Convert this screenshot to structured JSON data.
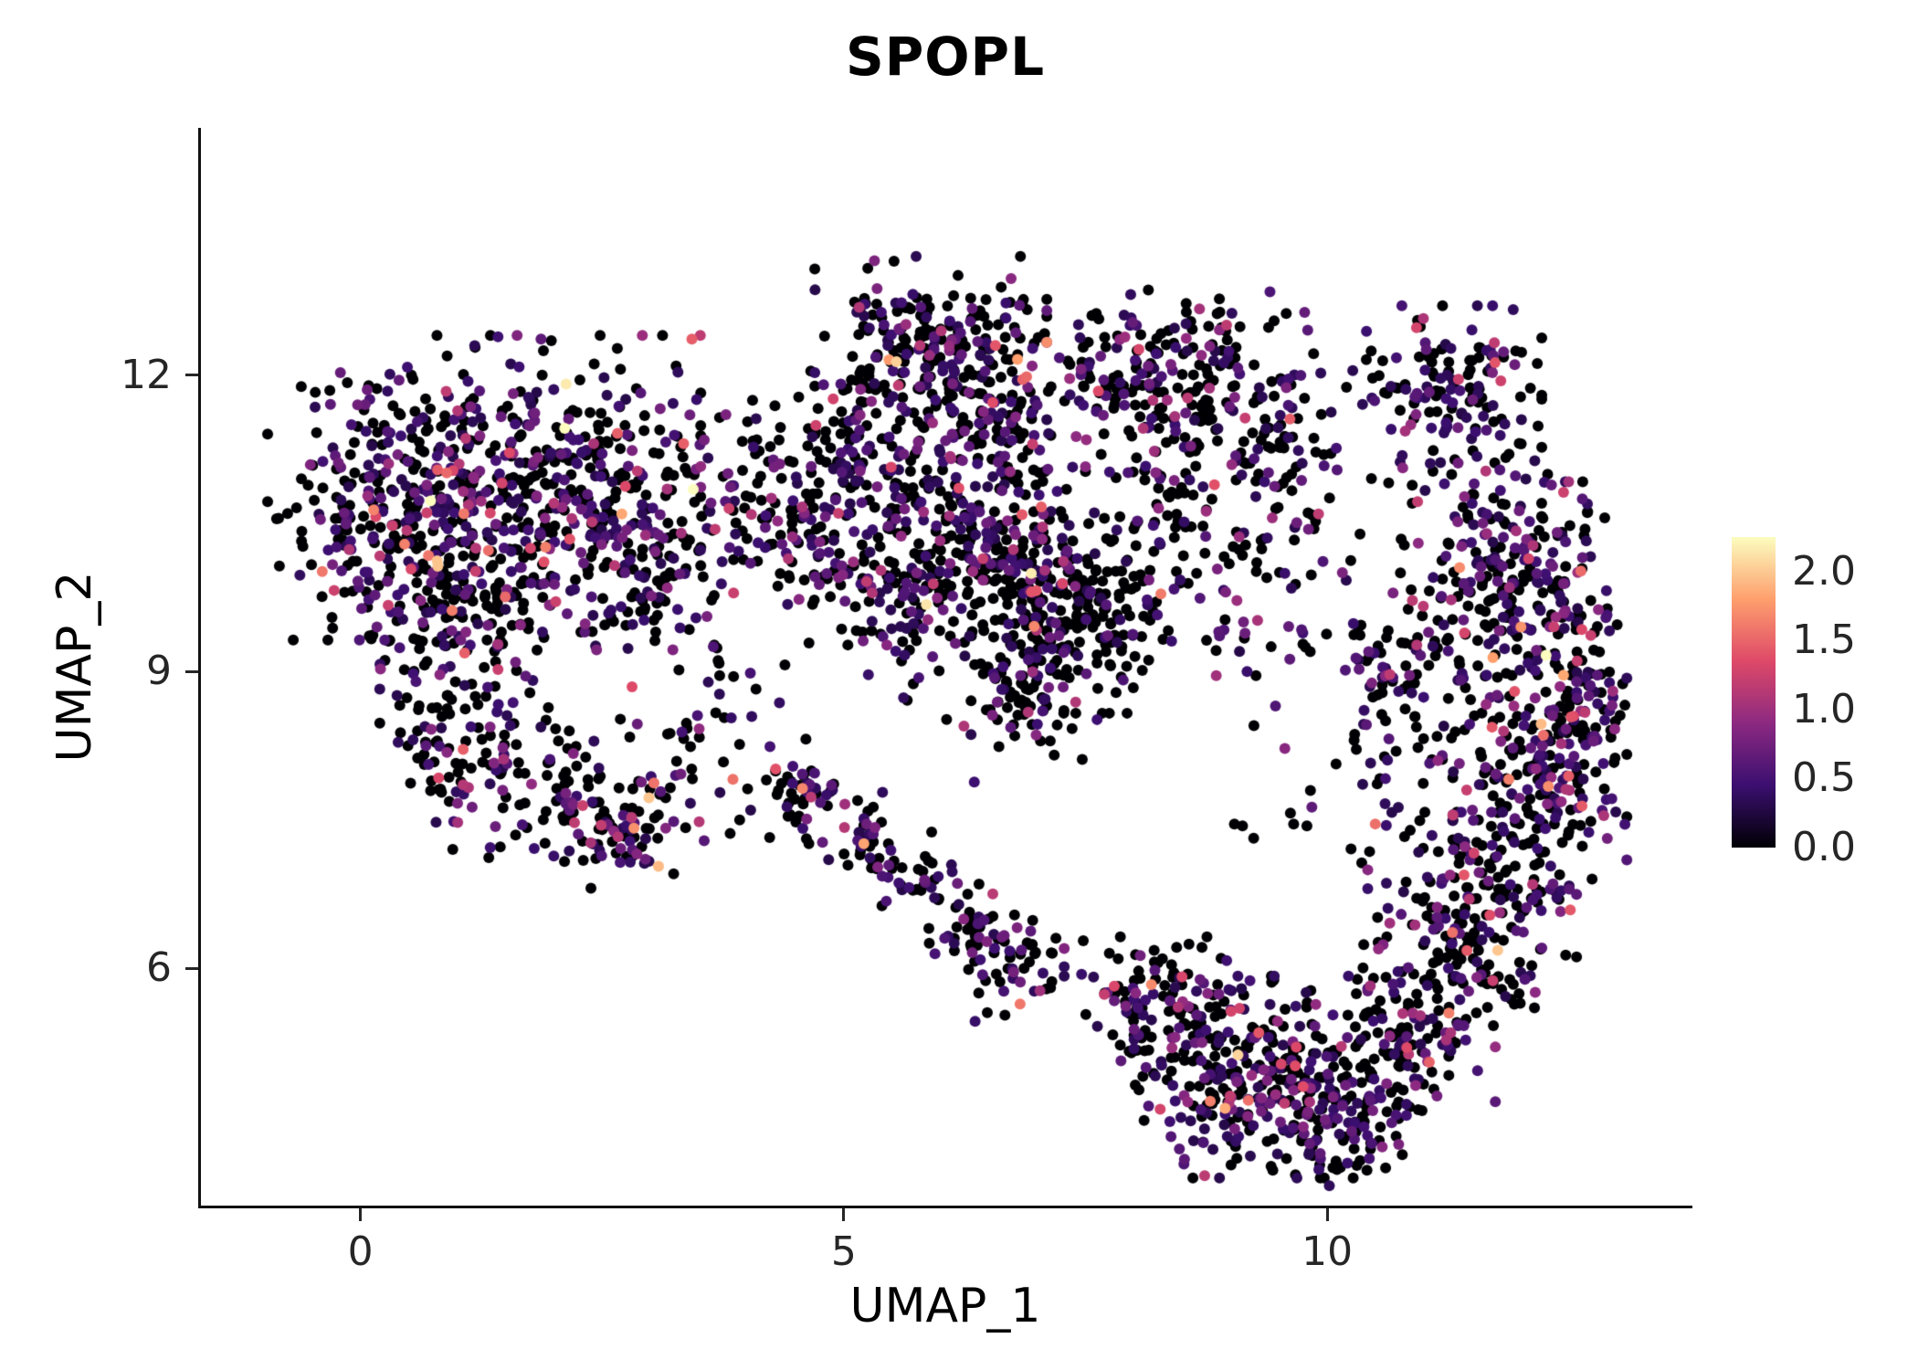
{
  "title": "SPOPL",
  "axes": {
    "x_label": "UMAP_1",
    "y_label": "UMAP_2",
    "x_ticks": [
      "0",
      "5",
      "10"
    ],
    "x_tick_values": [
      0,
      5,
      10
    ],
    "y_ticks": [
      "6",
      "9",
      "12"
    ],
    "y_tick_values": [
      6,
      9,
      12
    ],
    "x_domain": [
      -1.65,
      13.75
    ],
    "y_domain": [
      3.6,
      14.5
    ]
  },
  "legend": {
    "tick_labels": [
      "2.0",
      "1.5",
      "1.0",
      "0.5",
      "0.0"
    ],
    "tick_values": [
      2.0,
      1.5,
      1.0,
      0.5,
      0.0
    ],
    "vmax": 2.25,
    "colormap": "magma",
    "stops": [
      [
        0,
        "#000004"
      ],
      [
        0.2,
        "#3b0f70"
      ],
      [
        0.4,
        "#8c2981"
      ],
      [
        0.6,
        "#de4968"
      ],
      [
        0.8,
        "#fe9f6d"
      ],
      [
        1,
        "#fcfdbf"
      ]
    ]
  },
  "colors": {
    "background": "#ffffff",
    "axis_line": "#111111",
    "axis_text": "#262626",
    "title_text": "#000000"
  },
  "chart_data": {
    "type": "scatter",
    "title": "SPOPL",
    "xlabel": "UMAP_1",
    "ylabel": "UMAP_2",
    "x_range_visible": [
      -0.7,
      13.1
    ],
    "y_range_visible": [
      3.7,
      13.3
    ],
    "color_scale": "expression 0.0 (black) to 2.0+ (pale yellow), magma colormap",
    "point_radius_px": 6,
    "seed": 42,
    "cluster_fields": [
      "center_x",
      "center_y",
      "spread_x",
      "spread_y",
      "n_points",
      "zero_expression_fraction",
      "expression_mean"
    ],
    "clusters": [
      [
        0.3,
        10.7,
        1.05,
        1.15,
        280,
        0.5,
        0.55
      ],
      [
        1.9,
        10.9,
        1.35,
        1.25,
        430,
        0.52,
        0.55
      ],
      [
        1.0,
        9.6,
        0.9,
        0.7,
        120,
        0.55,
        0.5
      ],
      [
        2.9,
        10.3,
        0.8,
        0.9,
        110,
        0.58,
        0.5
      ],
      [
        3.9,
        10.9,
        0.6,
        0.8,
        60,
        0.62,
        0.5
      ],
      [
        1.1,
        8.2,
        0.75,
        0.9,
        110,
        0.62,
        0.5
      ],
      [
        2.0,
        7.8,
        0.6,
        0.6,
        60,
        0.62,
        0.5
      ],
      [
        2.7,
        7.35,
        0.45,
        0.45,
        70,
        0.5,
        0.6
      ],
      [
        3.6,
        8.3,
        0.8,
        0.9,
        50,
        0.65,
        0.5
      ],
      [
        5.9,
        12.3,
        1.0,
        0.75,
        230,
        0.6,
        0.5
      ],
      [
        5.2,
        11.2,
        0.8,
        0.7,
        130,
        0.62,
        0.5
      ],
      [
        6.6,
        11.4,
        0.75,
        0.7,
        120,
        0.6,
        0.5
      ],
      [
        4.6,
        10.4,
        0.6,
        0.6,
        70,
        0.6,
        0.5
      ],
      [
        7.6,
        12.1,
        0.5,
        0.5,
        40,
        0.6,
        0.5
      ],
      [
        5.6,
        9.9,
        0.8,
        0.8,
        150,
        0.62,
        0.5
      ],
      [
        6.5,
        10.2,
        0.7,
        0.7,
        130,
        0.6,
        0.5
      ],
      [
        7.4,
        9.6,
        0.9,
        0.85,
        230,
        0.68,
        0.45
      ],
      [
        6.9,
        8.9,
        0.6,
        0.5,
        90,
        0.7,
        0.45
      ],
      [
        8.6,
        11.9,
        1.05,
        0.8,
        210,
        0.62,
        0.5
      ],
      [
        9.6,
        11.3,
        0.5,
        0.6,
        50,
        0.6,
        0.5
      ],
      [
        9.3,
        10.1,
        0.85,
        0.95,
        70,
        0.6,
        0.5
      ],
      [
        8.3,
        10.7,
        0.5,
        0.5,
        40,
        0.6,
        0.5
      ],
      [
        11.2,
        11.8,
        0.85,
        0.75,
        150,
        0.55,
        0.55
      ],
      [
        11.9,
        10.0,
        0.85,
        1.0,
        220,
        0.5,
        0.6
      ],
      [
        12.2,
        8.0,
        0.75,
        1.0,
        230,
        0.5,
        0.6
      ],
      [
        11.5,
        6.5,
        0.9,
        0.9,
        200,
        0.55,
        0.55
      ],
      [
        10.8,
        8.9,
        0.65,
        1.2,
        110,
        0.6,
        0.5
      ],
      [
        10.9,
        5.4,
        0.7,
        0.7,
        120,
        0.55,
        0.55
      ],
      [
        12.6,
        9.0,
        0.4,
        1.6,
        90,
        0.5,
        0.6
      ],
      [
        9.3,
        4.9,
        1.2,
        0.85,
        330,
        0.6,
        0.5
      ],
      [
        8.3,
        5.6,
        0.7,
        0.6,
        110,
        0.62,
        0.5
      ],
      [
        10.1,
        4.4,
        0.6,
        0.5,
        80,
        0.6,
        0.5
      ],
      [
        4.6,
        7.8,
        0.4,
        0.45,
        45,
        0.6,
        0.5
      ],
      [
        5.2,
        7.3,
        0.35,
        0.4,
        35,
        0.6,
        0.5
      ],
      [
        5.8,
        6.9,
        0.35,
        0.4,
        35,
        0.6,
        0.5
      ],
      [
        6.3,
        6.4,
        0.35,
        0.4,
        40,
        0.6,
        0.5
      ],
      [
        6.8,
        6.0,
        0.4,
        0.45,
        50,
        0.55,
        0.55
      ],
      [
        6.5,
        9.6,
        3.2,
        1.8,
        60,
        0.7,
        0.4
      ],
      [
        9.8,
        7.5,
        1.2,
        1.0,
        15,
        0.65,
        0.5
      ]
    ]
  }
}
